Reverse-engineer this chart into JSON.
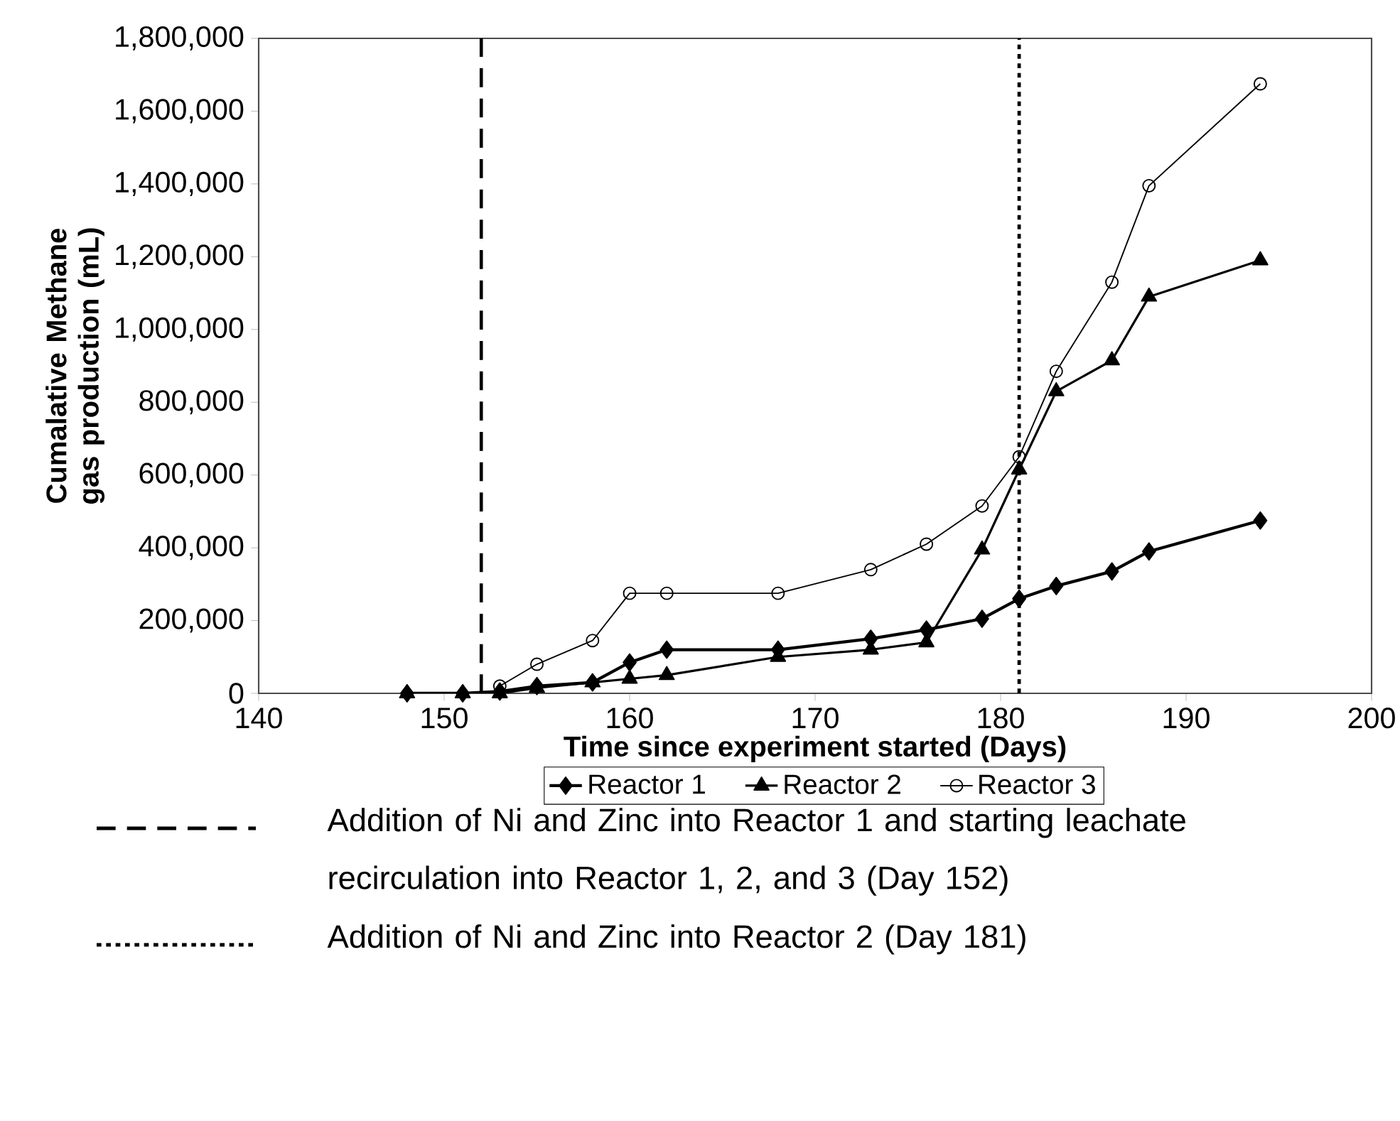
{
  "chart_data": {
    "type": "line",
    "xlabel": "Time since experiment started (Days)",
    "ylabel": "Cumalative Methane gas production (mL)",
    "x": [
      148,
      151,
      153,
      155,
      158,
      160,
      162,
      168,
      173,
      176,
      179,
      181,
      183,
      186,
      188,
      194
    ],
    "series": [
      {
        "name": "Reactor 1",
        "color": "#000000",
        "marker": "diamond",
        "values": [
          0,
          0,
          5000,
          20000,
          30000,
          85000,
          120000,
          120000,
          150000,
          175000,
          205000,
          260000,
          295000,
          335000,
          390000,
          475000
        ]
      },
      {
        "name": "Reactor 2",
        "color": "#000000",
        "marker": "triangle",
        "values": [
          0,
          0,
          0,
          15000,
          30000,
          40000,
          50000,
          100000,
          120000,
          140000,
          395000,
          615000,
          830000,
          915000,
          1090000,
          1190000
        ]
      },
      {
        "name": "Reactor 3",
        "color": "#000000",
        "marker": "circle",
        "values": [
          null,
          null,
          20000,
          80000,
          145000,
          275000,
          275000,
          275000,
          340000,
          410000,
          515000,
          650000,
          885000,
          1130000,
          1395000,
          1675000
        ]
      }
    ],
    "xlim": [
      140,
      200
    ],
    "xticks": [
      140,
      150,
      160,
      170,
      180,
      190,
      200
    ],
    "ylim": [
      0,
      1800000
    ],
    "yticks": [
      0,
      {
        "value": 200000,
        "label": "200,000"
      },
      {
        "value": 400000,
        "label": "400,000"
      },
      {
        "value": 600000,
        "label": "600,000"
      },
      {
        "value": 800000,
        "label": "800,000"
      },
      {
        "value": 1000000,
        "label": "1,000,000"
      },
      {
        "value": 1200000,
        "label": "1,200,000"
      },
      {
        "value": 1400000,
        "label": "1,400,000"
      },
      {
        "value": 1600000,
        "label": "1,600,000"
      },
      {
        "value": 1800000,
        "label": "1,800,000"
      }
    ],
    "ref_lines": [
      {
        "axis": "x",
        "value": 152,
        "line_style": "dashed",
        "color": "#000000",
        "label": "Addition of Ni and Zinc into Reactor 1 and starting leachate recirculation into Reactor 1, 2, and 3 (Day 152)"
      },
      {
        "axis": "x",
        "value": 181,
        "line_style": "dotted",
        "color": "#000000",
        "label": "Addition of Ni and Zinc into Reactor 2 (Day 181)"
      }
    ],
    "grid": false,
    "legend": "bottom",
    "line_style": "solid"
  }
}
